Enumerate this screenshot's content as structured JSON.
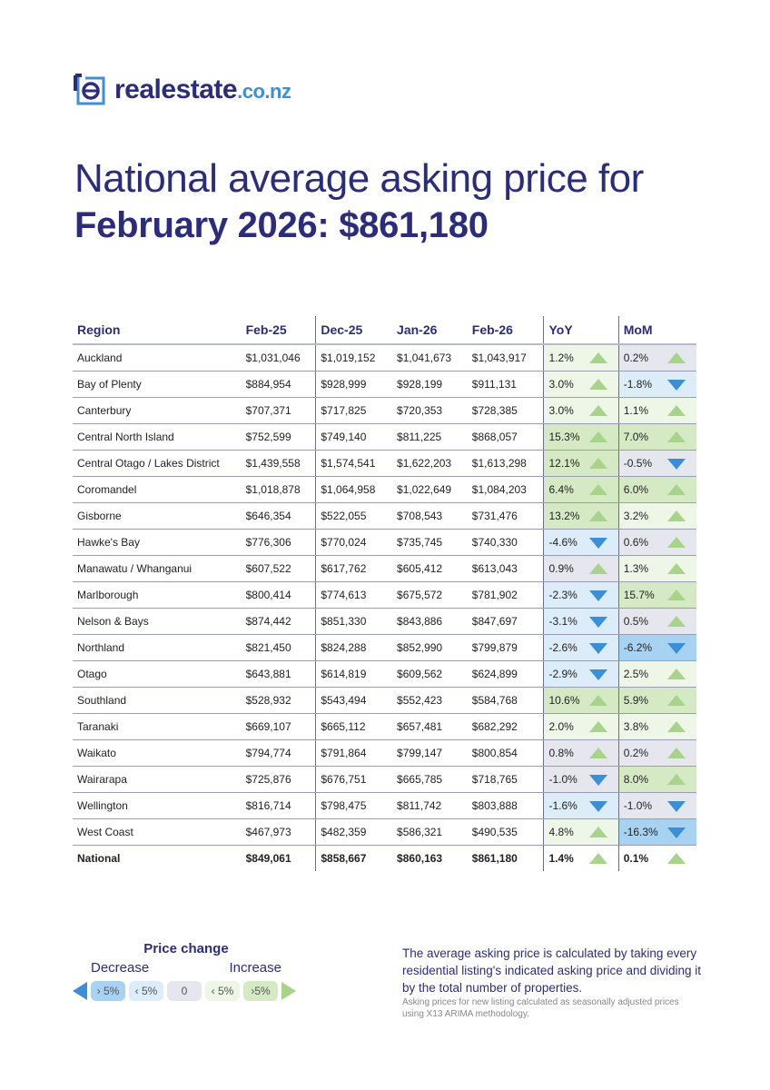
{
  "logo": {
    "name": "realestate",
    "tld": ".co.nz"
  },
  "title": {
    "line1": "National average asking price for",
    "line2": "February 2026: $861,180"
  },
  "table": {
    "headers": [
      "Region",
      "Feb-25",
      "Dec-25",
      "Jan-26",
      "Feb-26",
      "YoY",
      "MoM"
    ],
    "rows": [
      [
        "Auckland",
        "$1,031,046",
        "$1,019,152",
        "$1,041,673",
        "$1,043,917",
        "1.2%",
        "0.2%"
      ],
      [
        "Bay of Plenty",
        "$884,954",
        "$928,999",
        "$928,199",
        "$911,131",
        "3.0%",
        "-1.8%"
      ],
      [
        "Canterbury",
        "$707,371",
        "$717,825",
        "$720,353",
        "$728,385",
        "3.0%",
        "1.1%"
      ],
      [
        "Central North Island",
        "$752,599",
        "$749,140",
        "$811,225",
        "$868,057",
        "15.3%",
        "7.0%"
      ],
      [
        "Central Otago / Lakes District",
        "$1,439,558",
        "$1,574,541",
        "$1,622,203",
        "$1,613,298",
        "12.1%",
        "-0.5%"
      ],
      [
        "Coromandel",
        "$1,018,878",
        "$1,064,958",
        "$1,022,649",
        "$1,084,203",
        "6.4%",
        "6.0%"
      ],
      [
        "Gisborne",
        "$646,354",
        "$522,055",
        "$708,543",
        "$731,476",
        "13.2%",
        "3.2%"
      ],
      [
        "Hawke's Bay",
        "$776,306",
        "$770,024",
        "$735,745",
        "$740,330",
        "-4.6%",
        "0.6%"
      ],
      [
        "Manawatu / Whanganui",
        "$607,522",
        "$617,762",
        "$605,412",
        "$613,043",
        "0.9%",
        "1.3%"
      ],
      [
        "Marlborough",
        "$800,414",
        "$774,613",
        "$675,572",
        "$781,902",
        "-2.3%",
        "15.7%"
      ],
      [
        "Nelson & Bays",
        "$874,442",
        "$851,330",
        "$843,886",
        "$847,697",
        "-3.1%",
        "0.5%"
      ],
      [
        "Northland",
        "$821,450",
        "$824,288",
        "$852,990",
        "$799,879",
        "-2.6%",
        "-6.2%"
      ],
      [
        "Otago",
        "$643,881",
        "$614,819",
        "$609,562",
        "$624,899",
        "-2.9%",
        "2.5%"
      ],
      [
        "Southland",
        "$528,932",
        "$543,494",
        "$552,423",
        "$584,768",
        "10.6%",
        "5.9%"
      ],
      [
        "Taranaki",
        "$669,107",
        "$665,112",
        "$657,481",
        "$682,292",
        "2.0%",
        "3.8%"
      ],
      [
        "Waikato",
        "$794,774",
        "$791,864",
        "$799,147",
        "$800,854",
        "0.8%",
        "0.2%"
      ],
      [
        "Wairarapa",
        "$725,876",
        "$676,751",
        "$665,785",
        "$718,765",
        "-1.0%",
        "8.0%"
      ],
      [
        "Wellington",
        "$816,714",
        "$798,475",
        "$811,742",
        "$803,888",
        "-1.6%",
        "-1.0%"
      ],
      [
        "West Coast",
        "$467,973",
        "$482,359",
        "$586,321",
        "$490,535",
        "4.8%",
        "-16.3%"
      ]
    ],
    "total": [
      "National",
      "$849,061",
      "$858,667",
      "$860,163",
      "$861,180",
      "1.4%",
      "0.1%"
    ]
  },
  "legend": {
    "title": "Price change",
    "decrease": "Decrease",
    "increase": "Increase",
    "chips": [
      "› 5%",
      "‹ 5%",
      "0",
      "‹ 5%",
      "›5%"
    ],
    "colors": [
      "#a8d2f1",
      "#dcecf9",
      "#e6e7ee",
      "#eef6e8",
      "#d5eac4"
    ]
  },
  "notes": {
    "main": "The average asking price is calculated by taking every residential listing's indicated asking price and dividing it by the total number of properties.",
    "footnote": "Asking prices for new listing calculated as seasonally adjusted prices using X13 ARIMA methodology."
  }
}
